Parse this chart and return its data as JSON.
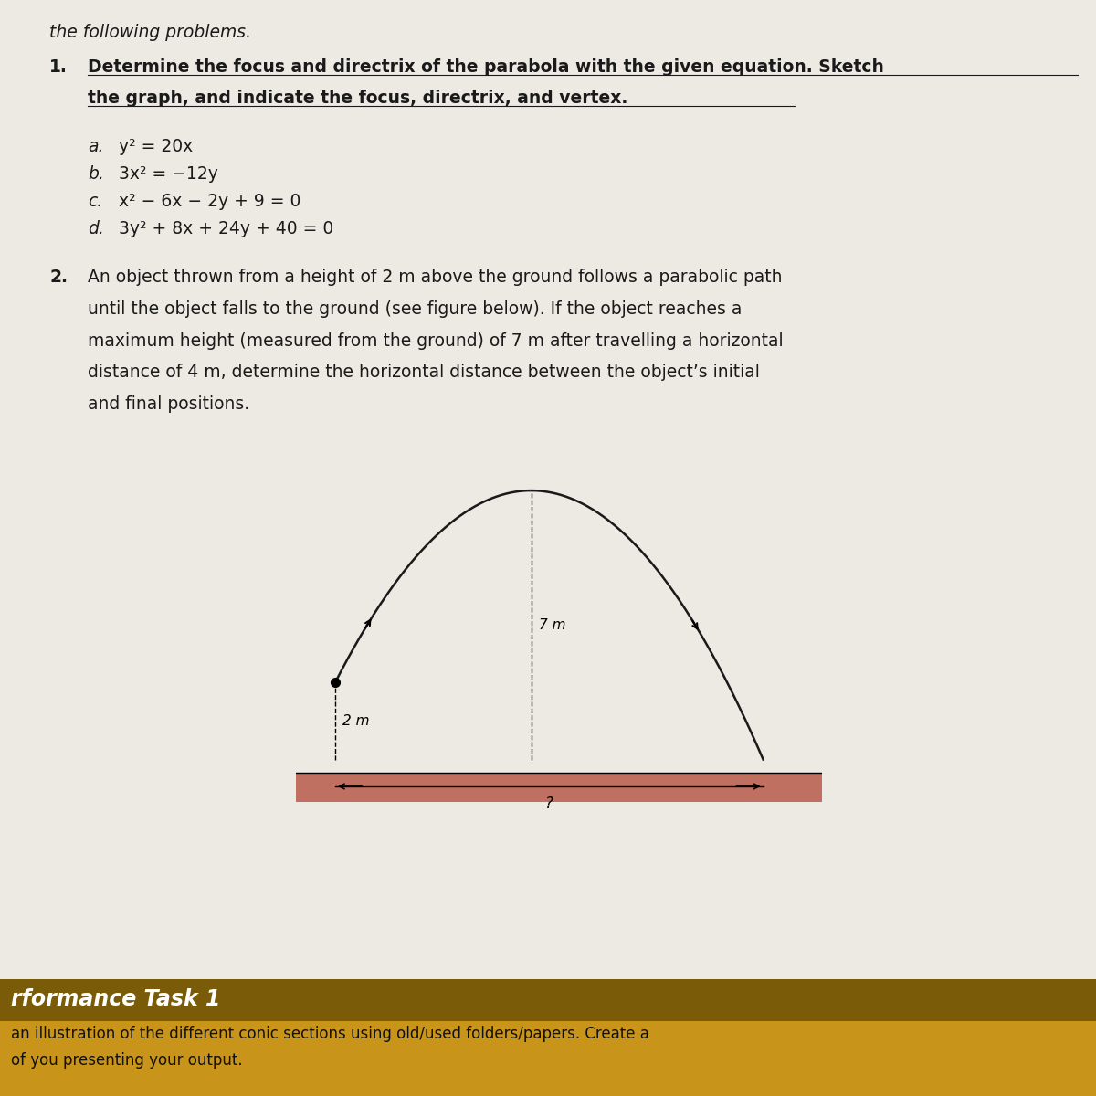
{
  "page_bg": "#ede9e3",
  "text_color": "#1a1a1a",
  "header_partial": "the following problems.",
  "q1_label": "1.",
  "q1_line1": "Determine the focus and directrix of the parabola with the given equation. Sketch",
  "q1_line2": "the graph, and indicate the focus, directrix, and vertex.",
  "items": [
    {
      "label": "a.",
      "eq": "y² = 20x"
    },
    {
      "label": "b.",
      "eq": "3x² = −12y"
    },
    {
      "label": "c.",
      "eq": "x² − 6x − 2y + 9 = 0"
    },
    {
      "label": "d.",
      "eq": "3y² + 8x + 24y + 40 = 0"
    }
  ],
  "q2_label": "2.",
  "q2_lines": [
    "An object thrown from a height of 2 m above the ground follows a parabolic path",
    "until the object falls to the ground (see figure below). If the object reaches a",
    "maximum height (measured from the ground) of 7 m after travelling a horizontal",
    "distance of 4 m, determine the horizontal distance between the object’s initial",
    "and final positions."
  ],
  "footer_gold": "#c8941a",
  "footer_dark": "#7a5c08",
  "footer_title": "rformance Task 1",
  "footer_line1": "an illustration of the different conic sections using old/used folders/papers. Create a",
  "footer_line2": "of you presenting your output.",
  "ground_color": "#c07060",
  "parabola_color": "#1a1a1a",
  "label_7m": "7 m",
  "label_2m": "2 m",
  "label_q": "?"
}
